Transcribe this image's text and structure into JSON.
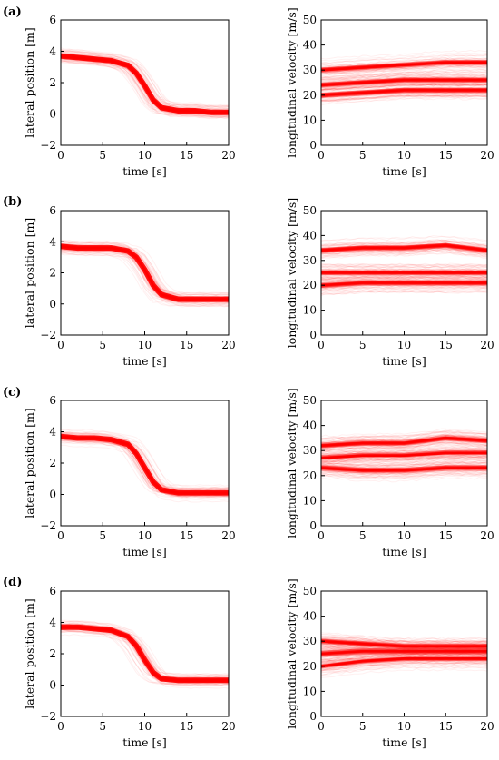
{
  "panels": [
    {
      "label": "(a)"
    },
    {
      "label": "(b)"
    },
    {
      "label": "(c)"
    },
    {
      "label": "(d)"
    }
  ],
  "colors": {
    "trajectory": "#ff0000",
    "axis": "#000000",
    "background": "#ffffff"
  },
  "chart_data": [
    {
      "panel": "(a)",
      "type": "line",
      "xlabel": "time [s]",
      "ylabel": "lateral position [m]",
      "xlim": [
        0,
        20
      ],
      "ylim": [
        -2,
        6
      ],
      "xticks": [
        0,
        5,
        10,
        15,
        20
      ],
      "yticks": [
        -2,
        0,
        2,
        4,
        6
      ],
      "grid": false,
      "series": [
        {
          "x": [
            0,
            2,
            4,
            6,
            8,
            9,
            10,
            11,
            12,
            14,
            16,
            18,
            20
          ],
          "values": [
            3.7,
            3.6,
            3.5,
            3.4,
            3.1,
            2.6,
            1.8,
            0.9,
            0.4,
            0.2,
            0.2,
            0.1,
            0.1
          ]
        }
      ]
    },
    {
      "panel": "(a)",
      "type": "line",
      "xlabel": "time [s]",
      "ylabel": "longitudinal velocity [m/s]",
      "xlim": [
        0,
        20
      ],
      "ylim": [
        0,
        50
      ],
      "xticks": [
        0,
        5,
        10,
        15,
        20
      ],
      "yticks": [
        0,
        10,
        20,
        30,
        40,
        50
      ],
      "grid": false,
      "series": [
        {
          "x": [
            0,
            5,
            10,
            15,
            20
          ],
          "values": [
            24,
            25,
            26,
            26,
            26
          ]
        },
        {
          "x": [
            0,
            5,
            10,
            15,
            20
          ],
          "values": [
            30,
            31,
            32,
            33,
            33
          ]
        },
        {
          "x": [
            0,
            5,
            10,
            15,
            20
          ],
          "values": [
            20,
            21,
            22,
            22,
            22
          ]
        }
      ]
    },
    {
      "panel": "(b)",
      "type": "line",
      "xlabel": "time [s]",
      "ylabel": "lateral position [m]",
      "xlim": [
        0,
        20
      ],
      "ylim": [
        -2,
        6
      ],
      "xticks": [
        0,
        5,
        10,
        15,
        20
      ],
      "yticks": [
        -2,
        0,
        2,
        4,
        6
      ],
      "grid": false,
      "series": [
        {
          "x": [
            0,
            2,
            4,
            6,
            8,
            9,
            10,
            11,
            12,
            14,
            16,
            18,
            20
          ],
          "values": [
            3.7,
            3.6,
            3.6,
            3.6,
            3.4,
            3.0,
            2.2,
            1.2,
            0.6,
            0.3,
            0.3,
            0.3,
            0.3
          ]
        }
      ]
    },
    {
      "panel": "(b)",
      "type": "line",
      "xlabel": "time [s]",
      "ylabel": "longitudinal velocity [m/s]",
      "xlim": [
        0,
        20
      ],
      "ylim": [
        0,
        50
      ],
      "xticks": [
        0,
        5,
        10,
        15,
        20
      ],
      "yticks": [
        0,
        10,
        20,
        30,
        40,
        50
      ],
      "grid": false,
      "series": [
        {
          "x": [
            0,
            5,
            10,
            15,
            20
          ],
          "values": [
            34,
            35,
            35,
            36,
            34
          ]
        },
        {
          "x": [
            0,
            5,
            10,
            15,
            20
          ],
          "values": [
            25,
            25,
            25,
            25,
            25
          ]
        },
        {
          "x": [
            0,
            5,
            10,
            15,
            20
          ],
          "values": [
            20,
            21,
            21,
            21,
            21
          ]
        }
      ]
    },
    {
      "panel": "(c)",
      "type": "line",
      "xlabel": "time [s]",
      "ylabel": "lateral position [m]",
      "xlim": [
        0,
        20
      ],
      "ylim": [
        -2,
        6
      ],
      "xticks": [
        0,
        5,
        10,
        15,
        20
      ],
      "yticks": [
        -2,
        0,
        2,
        4,
        6
      ],
      "grid": false,
      "series": [
        {
          "x": [
            0,
            2,
            4,
            6,
            8,
            9,
            10,
            11,
            12,
            14,
            16,
            18,
            20
          ],
          "values": [
            3.7,
            3.6,
            3.6,
            3.5,
            3.2,
            2.6,
            1.7,
            0.8,
            0.3,
            0.1,
            0.1,
            0.1,
            0.1
          ]
        }
      ]
    },
    {
      "panel": "(c)",
      "type": "line",
      "xlabel": "time [s]",
      "ylabel": "longitudinal velocity [m/s]",
      "xlim": [
        0,
        20
      ],
      "ylim": [
        0,
        50
      ],
      "xticks": [
        0,
        5,
        10,
        15,
        20
      ],
      "yticks": [
        0,
        10,
        20,
        30,
        40,
        50
      ],
      "grid": false,
      "series": [
        {
          "x": [
            0,
            5,
            10,
            15,
            20
          ],
          "values": [
            27,
            28,
            28,
            29,
            29
          ]
        },
        {
          "x": [
            0,
            5,
            10,
            15,
            20
          ],
          "values": [
            23,
            22,
            22,
            23,
            23
          ]
        },
        {
          "x": [
            0,
            5,
            10,
            15,
            20
          ],
          "values": [
            32,
            33,
            33,
            35,
            34
          ]
        }
      ]
    },
    {
      "panel": "(d)",
      "type": "line",
      "xlabel": "time [s]",
      "ylabel": "lateral position [m]",
      "xlim": [
        0,
        20
      ],
      "ylim": [
        -2,
        6
      ],
      "xticks": [
        0,
        5,
        10,
        15,
        20
      ],
      "yticks": [
        -2,
        0,
        2,
        4,
        6
      ],
      "grid": false,
      "series": [
        {
          "x": [
            0,
            2,
            4,
            6,
            8,
            9,
            10,
            11,
            12,
            14,
            16,
            18,
            20
          ],
          "values": [
            3.7,
            3.7,
            3.6,
            3.5,
            3.1,
            2.5,
            1.6,
            0.8,
            0.4,
            0.3,
            0.3,
            0.3,
            0.3
          ]
        }
      ]
    },
    {
      "panel": "(d)",
      "type": "line",
      "xlabel": "time [s]",
      "ylabel": "longitudinal velocity [m/s]",
      "xlim": [
        0,
        20
      ],
      "ylim": [
        0,
        50
      ],
      "xticks": [
        0,
        5,
        10,
        15,
        20
      ],
      "yticks": [
        0,
        10,
        20,
        30,
        40,
        50
      ],
      "grid": false,
      "series": [
        {
          "x": [
            0,
            5,
            10,
            15,
            20
          ],
          "values": [
            30,
            29,
            28,
            28,
            28
          ]
        },
        {
          "x": [
            0,
            5,
            10,
            15,
            20
          ],
          "values": [
            25,
            26,
            26,
            26,
            26
          ]
        },
        {
          "x": [
            0,
            5,
            10,
            15,
            20
          ],
          "values": [
            20,
            22,
            23,
            23,
            23
          ]
        }
      ]
    }
  ]
}
